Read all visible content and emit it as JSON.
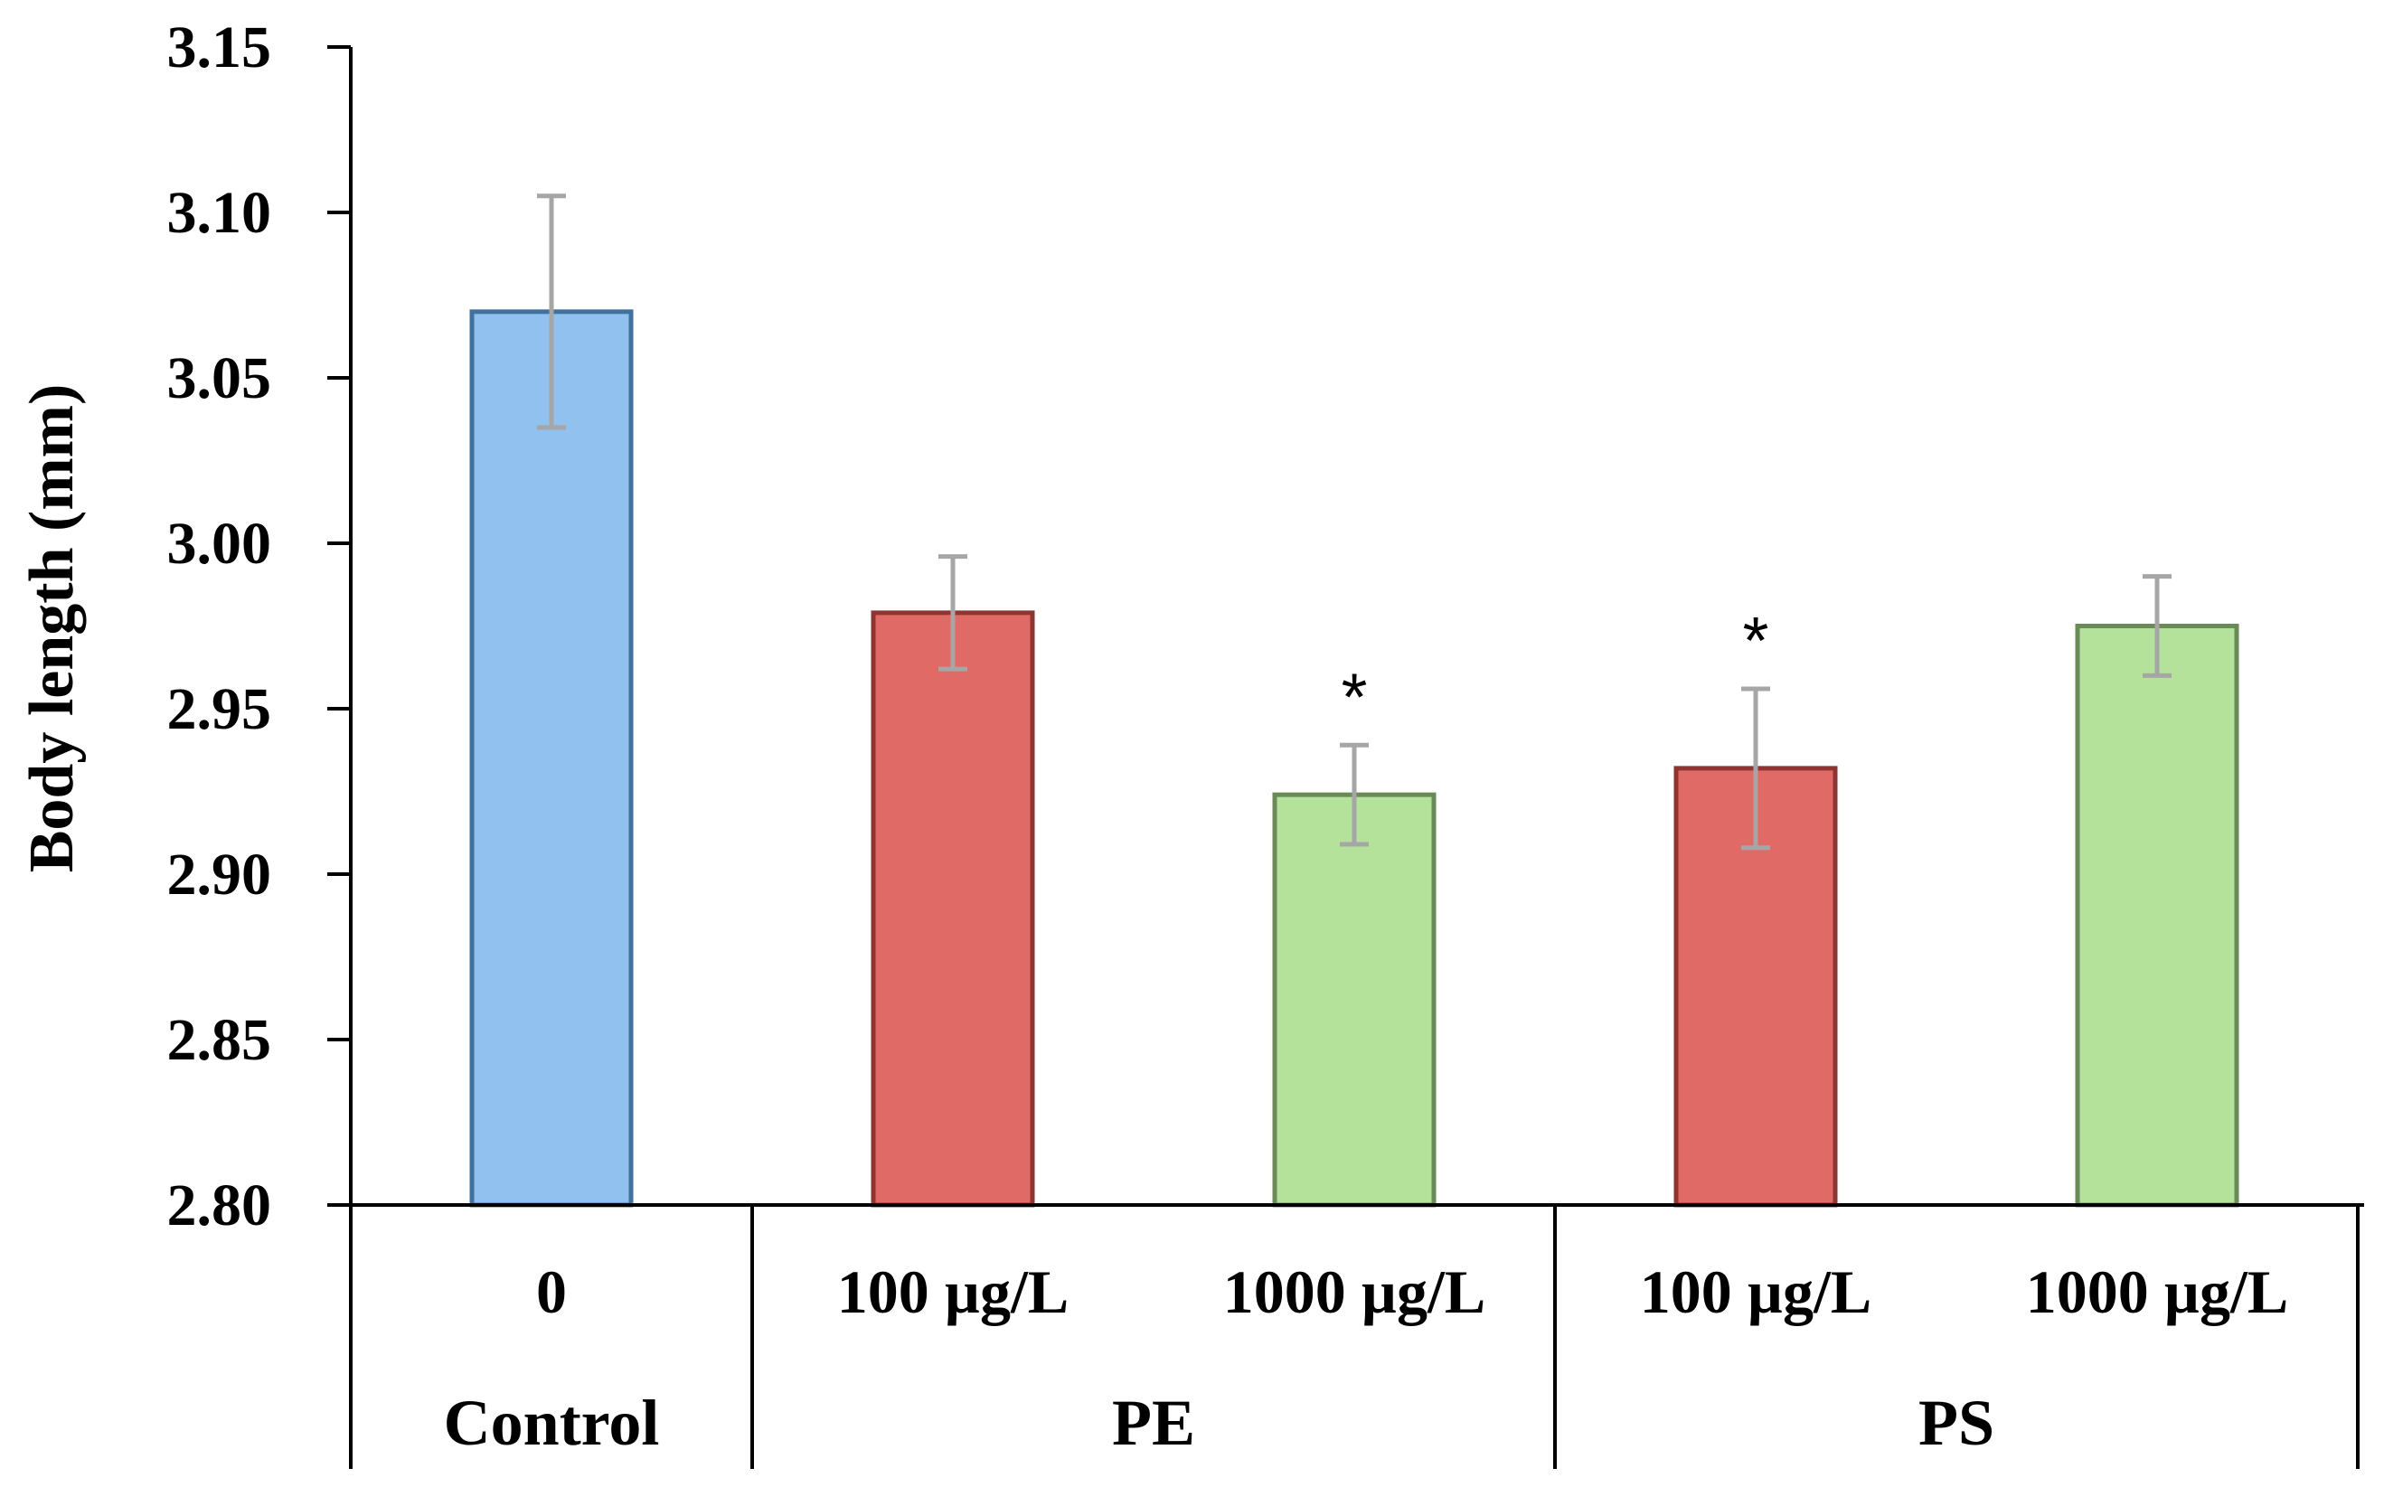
{
  "chart_data": {
    "type": "bar",
    "title": "",
    "xlabel": "",
    "ylabel": "Body length (mm)",
    "ylim": [
      2.8,
      3.15
    ],
    "yticks": [
      "2.80",
      "2.85",
      "2.90",
      "2.95",
      "3.00",
      "3.05",
      "3.10",
      "3.15"
    ],
    "grid": false,
    "legend": "none",
    "categories": [
      "0",
      "100 µg/L",
      "1000 µg/L",
      "100 µg/L",
      "1000 µg/L"
    ],
    "groups": [
      {
        "label": "Control",
        "categories": [
          0
        ]
      },
      {
        "label": "PE",
        "categories": [
          1,
          2
        ]
      },
      {
        "label": "PS",
        "categories": [
          3,
          4
        ]
      }
    ],
    "values": [
      3.07,
      2.979,
      2.924,
      2.932,
      2.975
    ],
    "errors": [
      0.035,
      0.017,
      0.015,
      0.024,
      0.015
    ],
    "significance": [
      "",
      "",
      "*",
      "*",
      ""
    ],
    "colors": {
      "fill": [
        "#90c1ef",
        "#e06b66",
        "#b4e29b",
        "#e06b66",
        "#b4e29b"
      ],
      "stroke": [
        "#41719c",
        "#8e3532",
        "#6a8b58",
        "#8e3532",
        "#6a8b58"
      ],
      "error_bar": "#a6a6a6",
      "axis": "#000000"
    }
  }
}
